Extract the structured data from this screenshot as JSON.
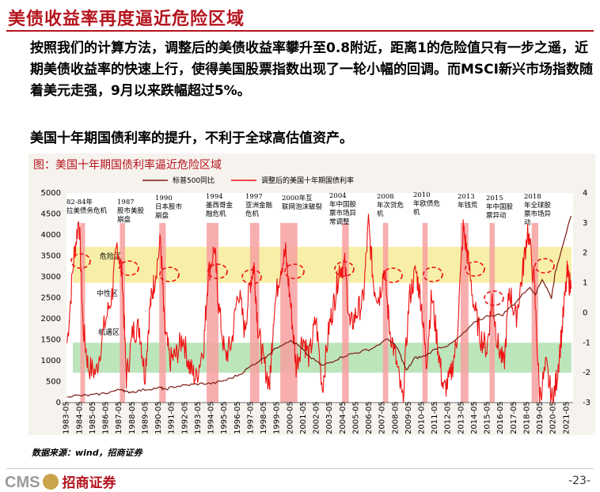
{
  "slide": {
    "title": "美债收益率再度逼近危险区域",
    "paragraph": "按照我们的计算方法，调整后的美债收益率攀升至0.8附近，距离1的危险值只有一步之遥，近期美债收益率的快速上行，使得美国股票指数出现了一轮小幅的回调。而MSCI新兴市场指数随着美元走强，9月以来跌幅超过5%。",
    "paragraph2": "美国十年期国债利率的提升，不利于全球高估值资产。",
    "source": "数据来源：wind，招商证券",
    "logo_text": "CMS",
    "logo_cn": "招商证券",
    "page": "-23-"
  },
  "colors": {
    "accent": "#b5141e",
    "danger_zone": "#f4ea8a",
    "safe_zone": "#a6dca6",
    "crisis_bar": "#f7a0a0",
    "sp500_line": "#7b1a10",
    "yield_line": "#ee1111"
  },
  "chart_data": {
    "type": "line",
    "title": "图：美国十年期国债利率逼近危险区域",
    "legend": [
      "标普500同比",
      "调整后的美国十年期国债利率"
    ],
    "y_left": {
      "min": 0,
      "max": 5000,
      "ticks": [
        0,
        500,
        1000,
        1500,
        2000,
        2500,
        3000,
        3500,
        4000,
        4500,
        5000
      ]
    },
    "y_right": {
      "min": -3,
      "max": 4,
      "ticks": [
        -3,
        -2,
        -1,
        0,
        1,
        2,
        3,
        4
      ]
    },
    "x_ticks": [
      "1983-05",
      "1984-05",
      "1985-05",
      "1986-05",
      "1987-05",
      "1988-05",
      "1989-05",
      "1990-05",
      "1991-05",
      "1992-05",
      "1993-05",
      "1994-05",
      "1995-05",
      "1996-05",
      "1997-05",
      "1998-05",
      "1999-05",
      "2000-05",
      "2001-05",
      "2002-05",
      "2003-05",
      "2004-05",
      "2005-05",
      "2006-05",
      "2007-05",
      "2008-05",
      "2009-05",
      "2010-05",
      "2011-05",
      "2012-05",
      "2013-05",
      "2014-05",
      "2015-05",
      "2016-05",
      "2017-05",
      "2018-05",
      "2019-05",
      "2020-05",
      "2021-05"
    ],
    "zones": [
      {
        "label": "危险区",
        "y_right": [
          1,
          2.2
        ]
      },
      {
        "label": "中性区",
        "y_right": [
          -1,
          1
        ]
      },
      {
        "label": "机遇区",
        "y_right": [
          -2,
          -1
        ]
      }
    ],
    "crisis_periods": [
      {
        "label": "82-84年拉美债务危机",
        "x": [
          1984.4,
          1984.7
        ]
      },
      {
        "label": "1987股市美股崩盘",
        "x": [
          1987.4,
          1987.8
        ]
      },
      {
        "label": "1990日本股市崩盘",
        "x": [
          1990.4,
          1990.9
        ]
      },
      {
        "label": "1994墨西哥金融危机",
        "x": [
          1994.0,
          1994.9
        ]
      },
      {
        "label": "1997亚洲金融危机",
        "x": [
          1997.3,
          1998.0
        ]
      },
      {
        "label": "2000年互联网泡沫破裂",
        "x": [
          1999.6,
          2000.9
        ]
      },
      {
        "label": "2004年中国股票市场异常调整",
        "x": [
          2004.3,
          2004.8
        ]
      },
      {
        "label": "2008年次贷危机",
        "x": [
          2007.4,
          2007.8
        ]
      },
      {
        "label": "2010年欧债危机",
        "x": [
          2010.4,
          2010.8
        ]
      },
      {
        "label": "2013年钱荒",
        "x": [
          2013.3,
          2013.9
        ]
      },
      {
        "label": "2015年中国股票异动",
        "x": [
          2015.5,
          2015.9
        ]
      },
      {
        "label": "2018年全球股票市场异动",
        "x": [
          2018.7,
          2019.2
        ]
      }
    ],
    "sp500": {
      "name": "标普500同比",
      "axis": "left",
      "x": [
        1983.4,
        1984.5,
        1985.5,
        1986.5,
        1987.6,
        1987.9,
        1988.5,
        1989.5,
        1990.5,
        1990.8,
        1991.5,
        1992.5,
        1993.5,
        1994.5,
        1995.5,
        1996.5,
        1997.5,
        1998.5,
        1999.5,
        2000.3,
        2000.9,
        2001.8,
        2002.8,
        2003.5,
        2004.5,
        2005.5,
        2006.5,
        2007.8,
        2008.5,
        2009.2,
        2009.8,
        2010.5,
        2011.5,
        2012.5,
        2013.5,
        2014.5,
        2015.5,
        2016.5,
        2017.5,
        2018.5,
        2019.0,
        2019.5,
        2020.2,
        2020.5,
        2021.0,
        2021.7
      ],
      "values": [
        160,
        165,
        185,
        240,
        320,
        250,
        265,
        320,
        355,
        310,
        380,
        415,
        450,
        460,
        540,
        670,
        900,
        1100,
        1350,
        1480,
        1380,
        1100,
        880,
        980,
        1120,
        1200,
        1280,
        1520,
        1300,
        760,
        1060,
        1100,
        1300,
        1380,
        1640,
        1950,
        2080,
        2100,
        2400,
        2750,
        2600,
        2950,
        2500,
        3100,
        3700,
        4450
      ]
    },
    "yield_adj": {
      "name": "调整后的美国十年期国债利率",
      "axis": "right",
      "x": [
        1983.4,
        1983.9,
        1984.3,
        1984.6,
        1985.0,
        1985.6,
        1986.2,
        1986.8,
        1987.2,
        1987.6,
        1987.9,
        1988.4,
        1988.9,
        1989.3,
        1989.7,
        1990.0,
        1990.5,
        1990.8,
        1991.2,
        1991.7,
        1992.2,
        1992.7,
        1993.2,
        1993.8,
        1994.1,
        1994.6,
        1994.9,
        1995.4,
        1995.9,
        1996.4,
        1996.9,
        1997.3,
        1997.6,
        1997.9,
        1998.3,
        1998.8,
        1999.1,
        1999.6,
        2000.0,
        2000.4,
        2000.8,
        2001.3,
        2001.8,
        2002.3,
        2002.8,
        2003.3,
        2003.7,
        2004.1,
        2004.5,
        2004.9,
        2005.4,
        2005.9,
        2006.3,
        2006.7,
        2007.1,
        2007.5,
        2007.9,
        2008.4,
        2008.9,
        2009.4,
        2009.9,
        2010.3,
        2010.7,
        2011.1,
        2011.6,
        2012.0,
        2012.5,
        2013.0,
        2013.5,
        2013.8,
        2014.3,
        2014.8,
        2015.3,
        2015.7,
        2016.1,
        2016.6,
        2017.0,
        2017.5,
        2018.0,
        2018.4,
        2018.9,
        2019.3,
        2019.8,
        2020.3,
        2020.6,
        2021.0,
        2021.4,
        2021.7
      ],
      "values": [
        -1.0,
        1.8,
        3.2,
        -0.4,
        -1.8,
        -2.0,
        -0.5,
        0.6,
        2.3,
        1.2,
        -2.2,
        -0.6,
        -0.5,
        -2.1,
        0.2,
        1.0,
        2.4,
        -0.5,
        -1.6,
        -1.4,
        -0.8,
        -1.8,
        -2.2,
        -1.0,
        1.2,
        2.2,
        0.3,
        -1.5,
        -1.0,
        0.8,
        -0.6,
        1.0,
        1.6,
        -0.5,
        -1.6,
        -2.4,
        0.0,
        1.5,
        2.0,
        0.2,
        -1.8,
        -0.8,
        -1.5,
        -0.2,
        -2.5,
        -0.5,
        0.4,
        1.5,
        1.6,
        -0.5,
        0.0,
        0.4,
        3.0,
        0.9,
        0.5,
        1.5,
        -0.5,
        -1.6,
        -3.0,
        0.5,
        1.4,
        0.4,
        -1.7,
        0.6,
        -1.2,
        -2.6,
        -2.2,
        -1.0,
        2.8,
        2.0,
        0.3,
        -0.8,
        -1.2,
        0.5,
        -1.0,
        -1.8,
        0.8,
        -0.2,
        1.3,
        2.8,
        1.0,
        -2.8,
        -1.8,
        -3.0,
        -2.2,
        -0.6,
        1.3,
        0.8
      ]
    }
  }
}
